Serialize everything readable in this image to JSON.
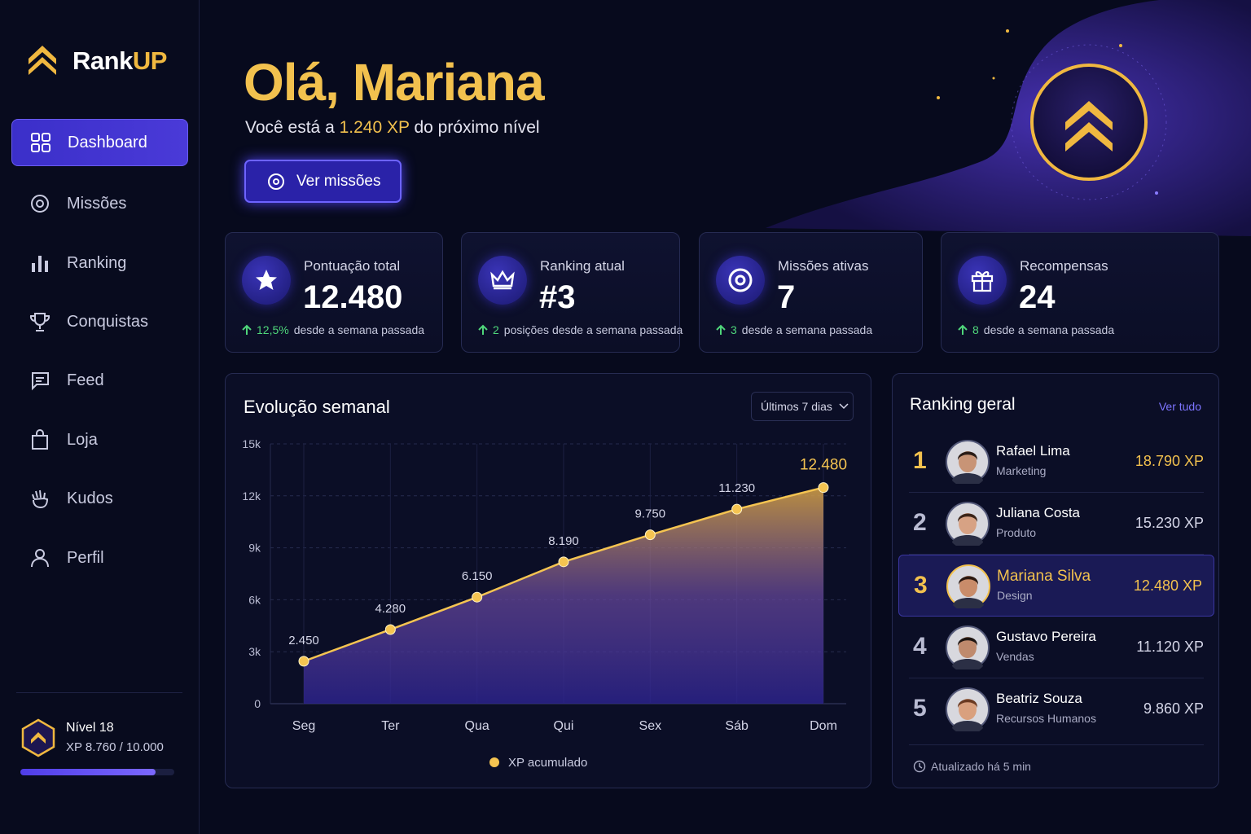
{
  "brand": {
    "name_main": "Rank",
    "name_accent": "UP"
  },
  "nav": [
    "Dashboard",
    "Missões",
    "Ranking",
    "Conquistas",
    "Feed",
    "Loja",
    "Kudos",
    "Perfil"
  ],
  "level": {
    "title": "Nível 18",
    "xp_text": "XP 8.760 / 10.000",
    "progress": {
      "value": 8760,
      "max": 10000
    }
  },
  "hero": {
    "greeting": "Olá, Mariana",
    "subtitle_before": "Você está a",
    "subtitle_highlight": "1.240 XP",
    "subtitle_after": "do próximo nível",
    "button": "Ver missões"
  },
  "stats": [
    {
      "label": "Pontuação total",
      "value": "12.480",
      "change": "12,5%",
      "note": "desde a semana passada"
    },
    {
      "label": "Ranking atual",
      "value": "#3",
      "change": "2",
      "note": "posições desde a semana passada"
    },
    {
      "label": "Missões ativas",
      "value": "7",
      "change": "3",
      "note": "desde a semana passada"
    },
    {
      "label": "Recompensas",
      "value": "24",
      "change": "8",
      "note": "desde a semana passada"
    }
  ],
  "chart_data": {
    "type": "line",
    "title": "Evolução semanal",
    "range_selector": "Últimos 7 dias",
    "categories": [
      "Seg",
      "Ter",
      "Qua",
      "Qui",
      "Sex",
      "Sáb",
      "Dom"
    ],
    "series": [
      {
        "name": "XP acumulado",
        "color": "#f5c451",
        "values": [
          2450,
          4280,
          6150,
          8190,
          9750,
          11230,
          12480
        ],
        "value_labels": [
          "2.450",
          "4.280",
          "6.150",
          "8.190",
          "9.750",
          "11.230",
          "12.480"
        ]
      }
    ],
    "ylim": [
      0,
      15000
    ],
    "yticks": [
      0,
      {
        "value": 3000,
        "label": "3k"
      },
      {
        "value": 6000,
        "label": "6k"
      },
      {
        "value": 9000,
        "label": "9k"
      },
      {
        "value": 12000,
        "label": "12k"
      },
      {
        "value": 15000,
        "label": "15k"
      }
    ],
    "grid": true
  },
  "ranking": {
    "title": "Ranking geral",
    "link": "Ver tudo",
    "rows": [
      {
        "rank": "1",
        "name": "Rafael Lima",
        "department": "Marketing",
        "xp": "18.790 XP"
      },
      {
        "rank": "2",
        "name": "Juliana Costa",
        "department": "Produto",
        "xp": "15.230 XP"
      },
      {
        "rank": "3",
        "name": "Mariana Silva",
        "department": "Design",
        "xp": "12.480 XP",
        "highlight": true
      },
      {
        "rank": "4",
        "name": "Gustavo Pereira",
        "department": "Vendas",
        "xp": "11.120 XP"
      },
      {
        "rank": "5",
        "name": "Beatriz Souza",
        "department": "Recursos Humanos",
        "xp": "9.860 XP"
      }
    ],
    "updated": "Atualizado há 5 min"
  }
}
